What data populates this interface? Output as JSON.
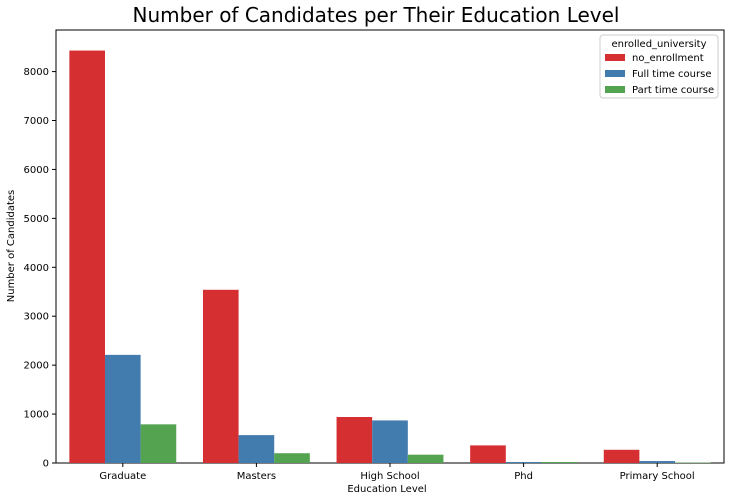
{
  "chart_data": {
    "type": "bar",
    "title": "Number of Candidates per Their Education Level",
    "xlabel": "Education Level",
    "ylabel": "Number of Candidates",
    "categories": [
      "Graduate",
      "Masters",
      "High School",
      "Phd",
      "Primary School"
    ],
    "series": [
      {
        "name": "no_enrollment",
        "color": "#d62f32",
        "values": [
          8430,
          3540,
          940,
          360,
          270
        ]
      },
      {
        "name": "Full time course",
        "color": "#427bad",
        "values": [
          2210,
          570,
          870,
          20,
          40
        ]
      },
      {
        "name": "Part time course",
        "color": "#53a350",
        "values": [
          790,
          200,
          170,
          20,
          10
        ]
      }
    ],
    "ylim": [
      0,
      8850
    ],
    "yticks": [
      0,
      1000,
      2000,
      3000,
      4000,
      5000,
      6000,
      7000,
      8000
    ],
    "legend": {
      "title": "enrolled_university",
      "placement": "top-right"
    },
    "grid": false
  }
}
